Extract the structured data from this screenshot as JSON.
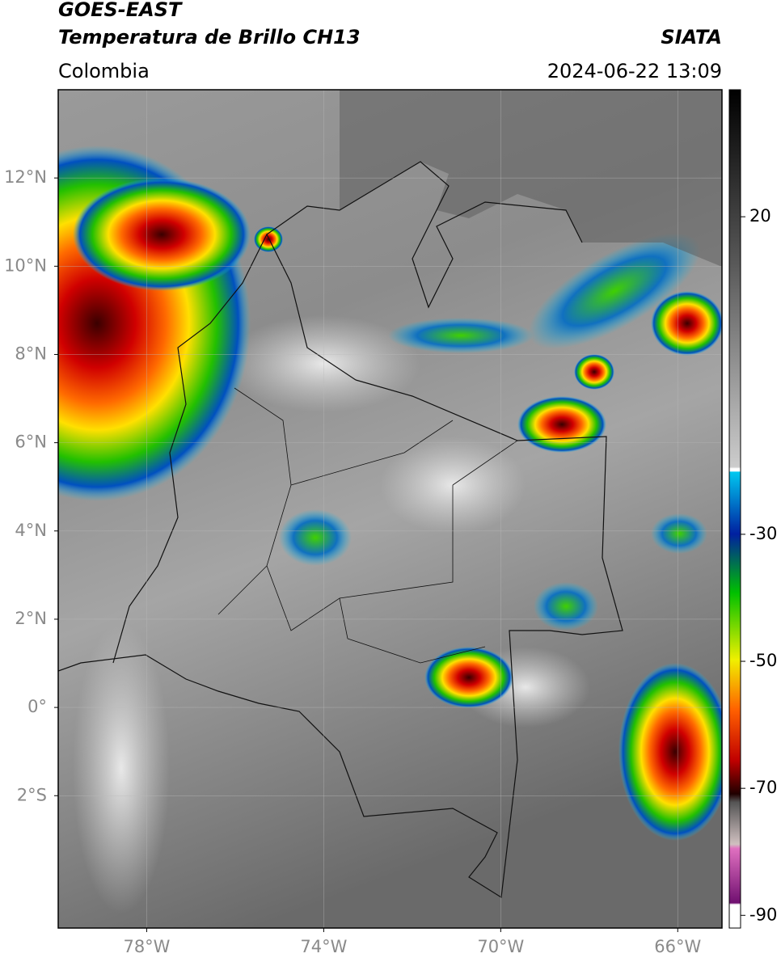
{
  "header": {
    "satellite": "GOES-EAST",
    "product": "Temperatura de Brillo CH13",
    "source": "SIATA",
    "region": "Colombia",
    "datetime": "2024-06-22 13:09"
  },
  "map": {
    "xlim": [
      -80,
      -65
    ],
    "ylim": [
      -5,
      14
    ],
    "xticks": [
      {
        "value": -78,
        "label": "78°W"
      },
      {
        "value": -74,
        "label": "74°W"
      },
      {
        "value": -70,
        "label": "70°W"
      },
      {
        "value": -66,
        "label": "66°W"
      }
    ],
    "yticks": [
      {
        "value": 12,
        "label": "12°N"
      },
      {
        "value": 10,
        "label": "10°N"
      },
      {
        "value": 8,
        "label": "8°N"
      },
      {
        "value": 6,
        "label": "6°N"
      },
      {
        "value": 4,
        "label": "4°N"
      },
      {
        "value": 2,
        "label": "2°N"
      },
      {
        "value": 0,
        "label": "0°"
      },
      {
        "value": -2,
        "label": "2°S"
      }
    ],
    "grid": true
  },
  "colorbar": {
    "lim": [
      -92,
      40
    ],
    "ticks": [
      20,
      -30,
      -50,
      -70,
      -90
    ]
  }
}
